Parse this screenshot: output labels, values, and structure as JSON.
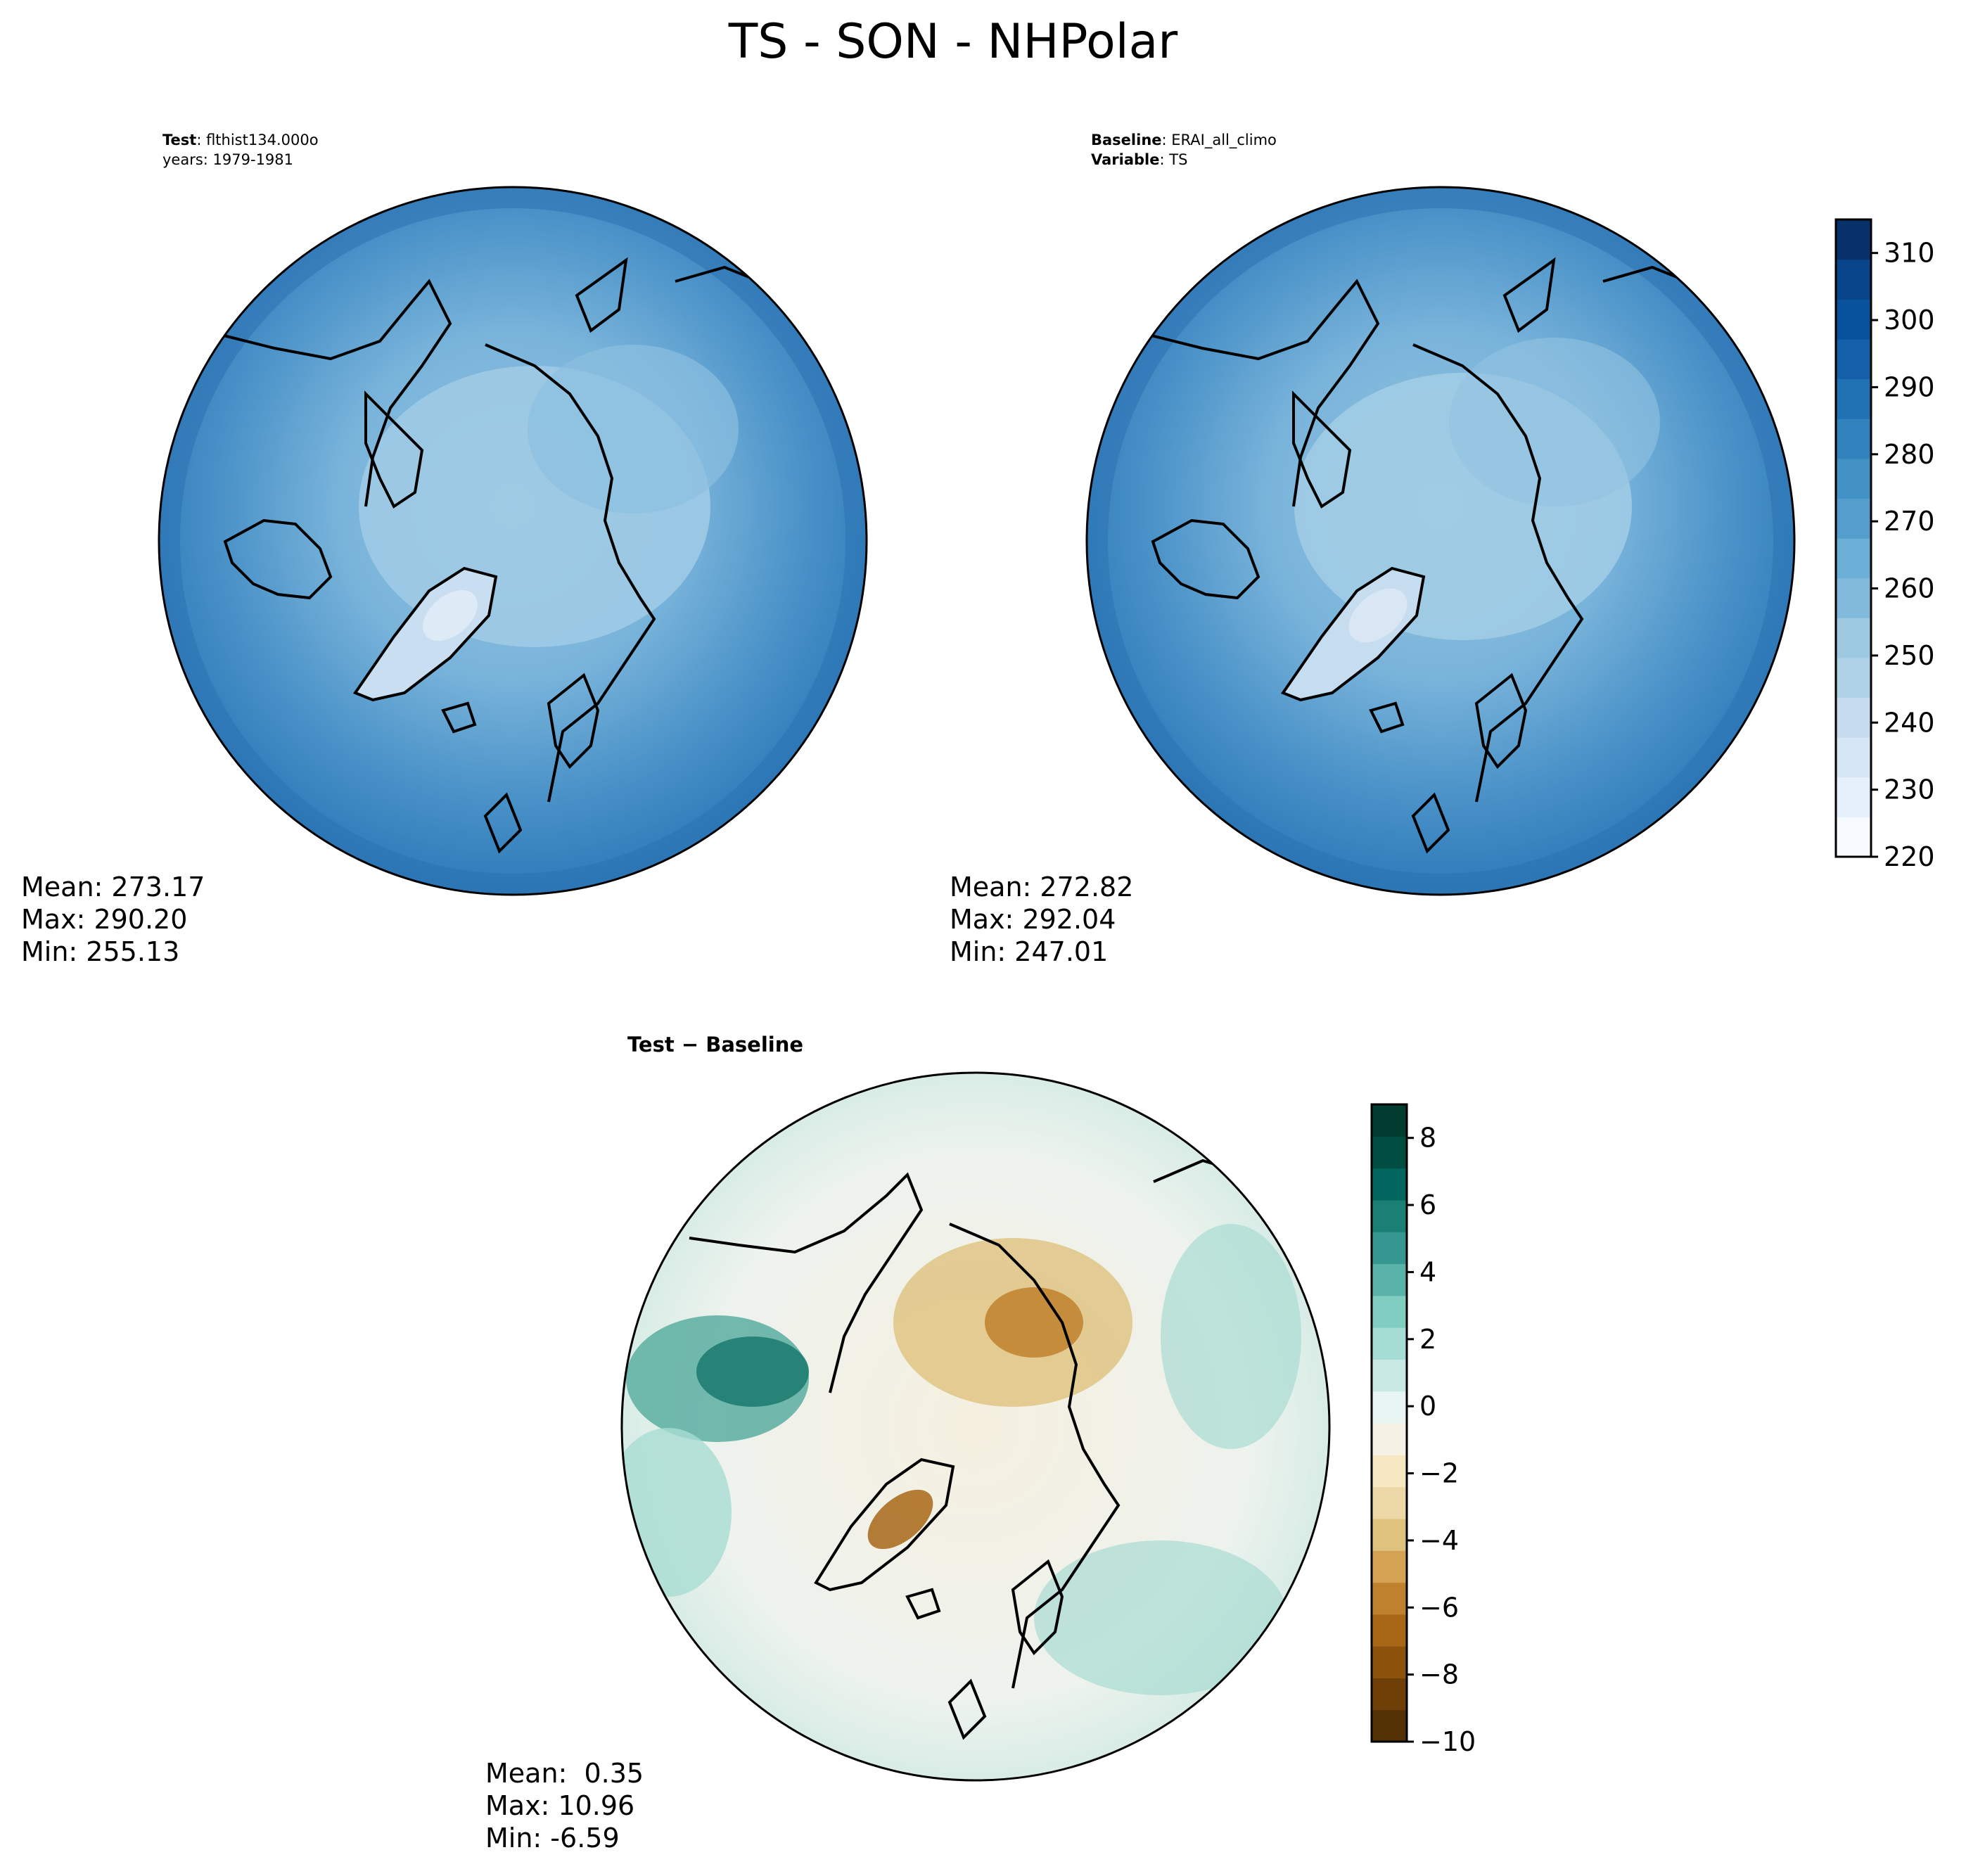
{
  "title": "TS - SON - NHPolar",
  "panels": [
    {
      "id": "test",
      "label_bold": "Test",
      "label_rest": ": flthist134.000o",
      "line2": "years: 1979-1981",
      "stats": [
        "Mean: 273.17",
        "Max: 290.20",
        "Min: 255.13"
      ]
    },
    {
      "id": "baseline",
      "label_bold": "Baseline",
      "label_rest": ": ERAI_all_climo",
      "line2_bold": "Variable",
      "line2_rest": ": TS",
      "stats": [
        "Mean: 272.82",
        "Max: 292.04",
        "Min: 247.01"
      ]
    },
    {
      "id": "diff",
      "label": "Test − Baseline",
      "stats": [
        "Mean:  0.35",
        "Max: 10.96",
        "Min: -6.59"
      ]
    }
  ],
  "colors": {
    "ocean_base": "#3c86c3",
    "ocean_outer": "#2e79b8",
    "polar_ice": "#8fc0e0",
    "coast": "#000000",
    "diff_neutral": "#f5f1e4"
  },
  "chart_data": [
    {
      "type": "heatmap",
      "projection": "north-polar-stereographic",
      "panel": "test",
      "colorbar_ticks": [
        "220",
        "230",
        "240",
        "250",
        "260",
        "270",
        "280",
        "290",
        "300",
        "310"
      ],
      "colorbar_range": [
        220,
        315
      ],
      "colormap": "Blues"
    },
    {
      "type": "heatmap",
      "projection": "north-polar-stereographic",
      "panel": "baseline",
      "colorbar_ticks": [
        "220",
        "230",
        "240",
        "250",
        "260",
        "270",
        "280",
        "290",
        "300",
        "310"
      ],
      "colorbar_range": [
        220,
        315
      ],
      "colorbar_colors": [
        "#f7fbff",
        "#e6f0fa",
        "#d6e6f4",
        "#c6dbef",
        "#b0d2e7",
        "#9ecae1",
        "#82badb",
        "#6baed6",
        "#539ecd",
        "#4292c6",
        "#3282be",
        "#2171b5",
        "#1561a9",
        "#08519c",
        "#08458a",
        "#08306b"
      ],
      "colormap": "Blues"
    },
    {
      "type": "heatmap",
      "projection": "north-polar-stereographic",
      "panel": "diff",
      "colorbar_ticks": [
        "8",
        "6",
        "4",
        "2",
        "0",
        "−2",
        "−4",
        "−6",
        "−8",
        "−10"
      ],
      "colorbar_range": [
        -10,
        9
      ],
      "colorbar_colors": [
        "#543005",
        "#6e3f07",
        "#8c510a",
        "#a86716",
        "#bf812d",
        "#d4a253",
        "#dfc27d",
        "#ecd8a6",
        "#f6e8c3",
        "#f5f1e4",
        "#e9f5f3",
        "#c7eae5",
        "#a5dcd3",
        "#80cdc1",
        "#5ab3a8",
        "#35978f",
        "#1c7f76",
        "#01665e",
        "#004d42",
        "#003c30"
      ],
      "colormap": "BrBG"
    }
  ]
}
